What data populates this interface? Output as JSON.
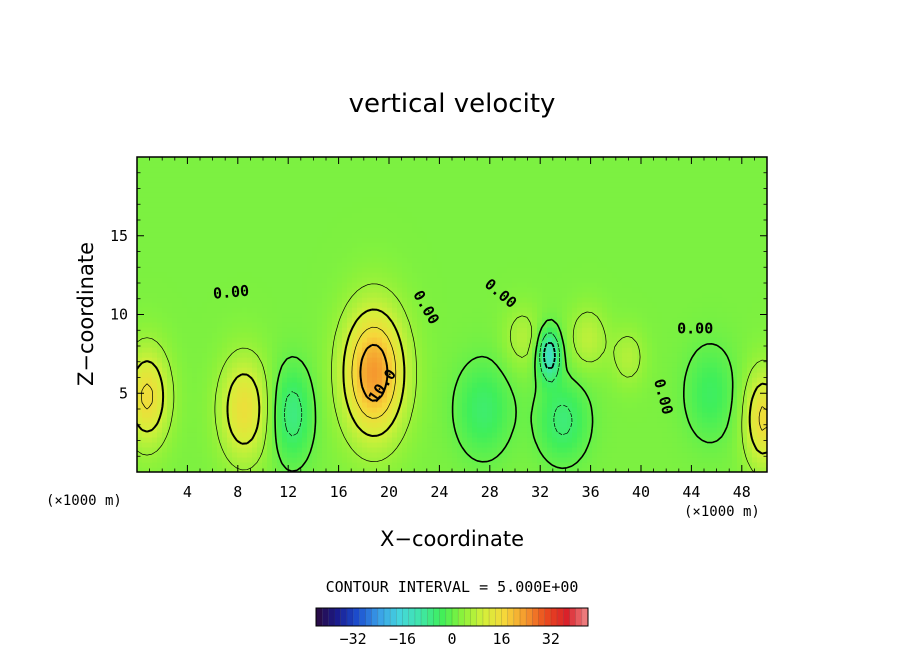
{
  "chart_data": {
    "type": "contour",
    "title": "vertical velocity",
    "xlabel": "X−coordinate",
    "ylabel": "Z−coordinate",
    "x_unit_left": "(×1000 m)",
    "x_unit_right": "(×1000 m)",
    "xlim": [
      0,
      50
    ],
    "ylim": [
      0,
      20
    ],
    "x_ticks": [
      4,
      8,
      12,
      16,
      20,
      24,
      28,
      32,
      36,
      40,
      44,
      48
    ],
    "y_ticks": [
      5,
      10,
      15
    ],
    "contour_interval_text": "CONTOUR INTERVAL = 5.000E+00",
    "contour_labels": [
      {
        "text": "0.00",
        "x": 7.5,
        "y": 11.1,
        "angle": -5
      },
      {
        "text": "0.00",
        "x": 22.6,
        "y": 10.3,
        "angle": 60
      },
      {
        "text": "10.0",
        "x": 19.8,
        "y": 5.3,
        "angle": -55
      },
      {
        "text": "0.00",
        "x": 28.6,
        "y": 11.1,
        "angle": 40
      },
      {
        "text": "0.00",
        "x": 41.4,
        "y": 4.7,
        "angle": 75
      },
      {
        "text": "0.00",
        "x": 44.3,
        "y": 8.8,
        "angle": 0
      }
    ],
    "colorbar": {
      "ticks": [
        "−32",
        "−16",
        "0",
        "16",
        "32"
      ],
      "tick_values": [
        -32,
        -16,
        0,
        16,
        32
      ],
      "range": [
        -44,
        44
      ],
      "colors": [
        "#2b0a3d",
        "#1a1a8c",
        "#1c4fd0",
        "#3a9ee8",
        "#44d6dd",
        "#3fe6a8",
        "#3fef5a",
        "#8cf23a",
        "#d4f03a",
        "#f6d83a",
        "#f59a2e",
        "#ea4a1e",
        "#d9202a",
        "#f08a8a"
      ]
    },
    "updrafts": [
      {
        "name": "left-edge",
        "x": 0.8,
        "z": 4.8,
        "amp": 14,
        "sx": 1.7,
        "sz": 3.0
      },
      {
        "name": "x8",
        "x": 8.5,
        "z": 4.0,
        "amp": 13,
        "sx": 1.9,
        "sz": 3.2
      },
      {
        "name": "x18",
        "x": 18.8,
        "z": 6.3,
        "amp": 22,
        "sx": 2.4,
        "sz": 4.0
      },
      {
        "name": "x31",
        "x": 30.6,
        "z": 8.5,
        "amp": 5,
        "sx": 1.5,
        "sz": 2.0
      },
      {
        "name": "x35",
        "x": 35.8,
        "z": 8.5,
        "amp": 6,
        "sx": 1.5,
        "sz": 2.0
      },
      {
        "name": "x39",
        "x": 39.0,
        "z": 7.3,
        "amp": 5,
        "sx": 1.3,
        "sz": 1.8
      },
      {
        "name": "right-edge",
        "x": 49.7,
        "z": 3.4,
        "amp": 14,
        "sx": 1.5,
        "sz": 3.0
      }
    ],
    "downdrafts": [
      {
        "name": "x12",
        "x": 12.3,
        "z": 3.7,
        "amp": -9,
        "sx": 1.6,
        "sz": 3.0
      },
      {
        "name": "x27",
        "x": 27.5,
        "z": 4.0,
        "amp": -7,
        "sx": 2.2,
        "sz": 3.0
      },
      {
        "name": "x32-core",
        "x": 32.7,
        "z": 7.5,
        "amp": -16,
        "sx": 0.9,
        "sz": 1.6
      },
      {
        "name": "x33",
        "x": 33.8,
        "z": 3.3,
        "amp": -8,
        "sx": 2.0,
        "sz": 2.6
      },
      {
        "name": "x45",
        "x": 45.5,
        "z": 5.0,
        "amp": -6,
        "sx": 2.0,
        "sz": 3.0
      }
    ],
    "background_w": 2
  }
}
